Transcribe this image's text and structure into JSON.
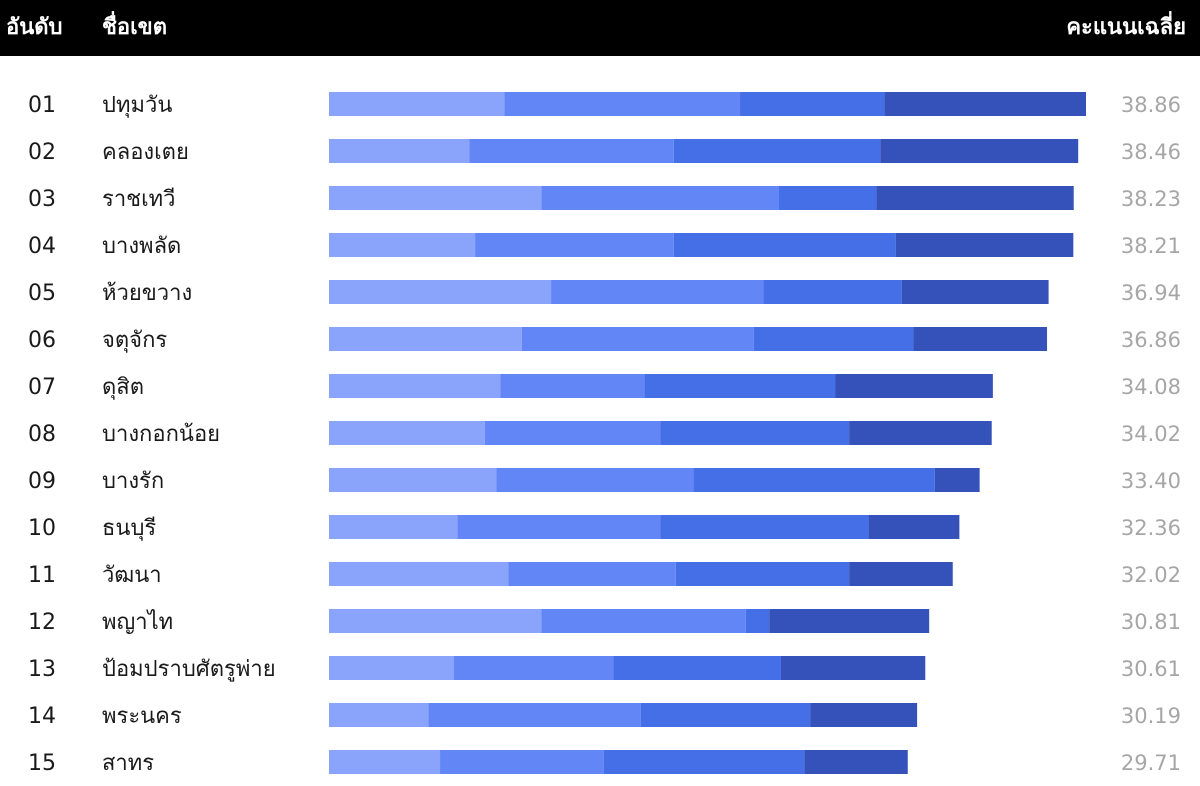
{
  "header": {
    "rank_label": "อันดับ",
    "name_label": "ชื่อเขต",
    "score_label": "คะแนนเฉลี่ย"
  },
  "colors": {
    "header_bg": "#000000",
    "segments": [
      "#8aa4fb",
      "#6386f6",
      "#456fe6",
      "#3551ba"
    ],
    "value_text": "#a6a6a6"
  },
  "chart_data": {
    "type": "bar",
    "orientation": "horizontal",
    "stacked": true,
    "title": "",
    "xlabel": "",
    "ylabel": "",
    "xlim": [
      0,
      38.86
    ],
    "grid": false,
    "legend": "none",
    "rows": [
      {
        "rank": "01",
        "name": "ปทุมวัน",
        "total": "38.86",
        "segments": [
          9.0,
          12.1,
          7.4,
          10.36
        ]
      },
      {
        "rank": "02",
        "name": "คลองเตย",
        "total": "38.46",
        "segments": [
          7.2,
          10.5,
          10.6,
          10.16
        ]
      },
      {
        "rank": "03",
        "name": "ราชเทวี",
        "total": "38.23",
        "segments": [
          10.9,
          12.2,
          5.0,
          10.13
        ]
      },
      {
        "rank": "04",
        "name": "บางพลัด",
        "total": "38.21",
        "segments": [
          7.5,
          10.2,
          11.4,
          9.11
        ]
      },
      {
        "rank": "05",
        "name": "ห้วยขวาง",
        "total": "36.94",
        "segments": [
          11.4,
          10.9,
          7.1,
          7.54
        ]
      },
      {
        "rank": "06",
        "name": "จตุจักร",
        "total": "36.86",
        "segments": [
          9.9,
          11.9,
          8.2,
          6.86
        ]
      },
      {
        "rank": "07",
        "name": "ดุสิต",
        "total": "34.08",
        "segments": [
          8.8,
          7.4,
          9.8,
          8.08
        ]
      },
      {
        "rank": "08",
        "name": "บางกอกน้อย",
        "total": "34.02",
        "segments": [
          8.0,
          9.0,
          9.7,
          7.32
        ]
      },
      {
        "rank": "09",
        "name": "บางรัก",
        "total": "33.40",
        "segments": [
          8.6,
          10.1,
          12.4,
          2.3
        ]
      },
      {
        "rank": "10",
        "name": "ธนบุรี",
        "total": "32.36",
        "segments": [
          6.6,
          10.4,
          10.7,
          4.66
        ]
      },
      {
        "rank": "11",
        "name": "วัฒนา",
        "total": "32.02",
        "segments": [
          9.2,
          8.6,
          8.9,
          5.32
        ]
      },
      {
        "rank": "12",
        "name": "พญาไท",
        "total": "30.81",
        "segments": [
          10.9,
          10.5,
          1.2,
          8.21
        ]
      },
      {
        "rank": "13",
        "name": "ป้อมปราบศัตรูพ่าย",
        "total": "30.61",
        "segments": [
          6.4,
          8.2,
          8.6,
          7.41
        ]
      },
      {
        "rank": "14",
        "name": "พระนคร",
        "total": "30.19",
        "segments": [
          5.1,
          10.9,
          8.7,
          5.49
        ]
      },
      {
        "rank": "15",
        "name": "สาทร",
        "total": "29.71",
        "segments": [
          5.7,
          8.4,
          10.3,
          5.31
        ]
      }
    ]
  }
}
